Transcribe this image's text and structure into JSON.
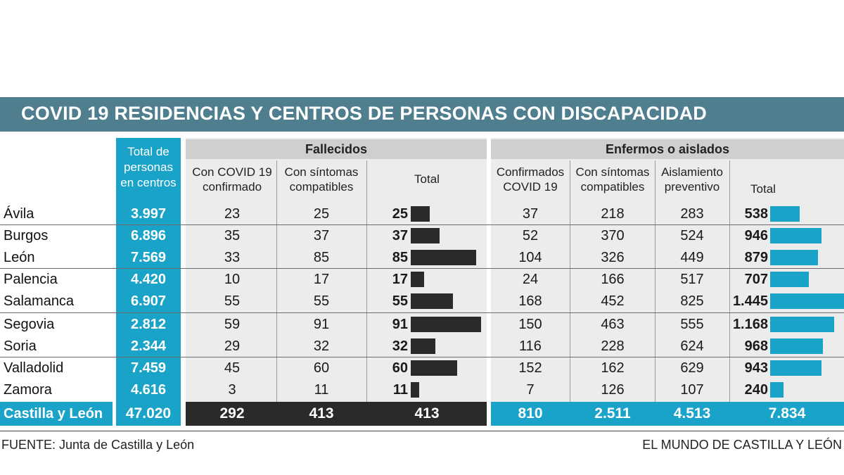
{
  "title": "COVID 19 RESIDENCIAS Y CENTROS DE PERSONAS CON DISCAPACIDAD",
  "groups": {
    "fallecidos": "Fallecidos",
    "enfermos": "Enfermos o aislados"
  },
  "headers": {
    "total_personas": "Total de personas en centros",
    "total_personas_lines": [
      "Total de",
      "personas",
      "en centros"
    ],
    "f_covid": [
      "Con COVID 19",
      "confirmado"
    ],
    "f_sintomas": [
      "Con síntomas",
      "compatibles"
    ],
    "f_total": "Total",
    "e_confirmados": [
      "Confirmados",
      "COVID 19"
    ],
    "e_sintomas": [
      "Con síntomas",
      "compatibles"
    ],
    "e_aislamiento": [
      "Aislamiento",
      "preventivo"
    ],
    "e_total": "Total"
  },
  "colors": {
    "title_bar": "#4f7f8f",
    "accent_blue": "#1aa3c8",
    "dark": "#2a2a2a",
    "grey_panel": "#ececec",
    "header_grey": "#cfcfcf"
  },
  "chart_data": {
    "type": "table",
    "title": "COVID 19 RESIDENCIAS Y CENTROS DE PERSONAS CON DISCAPACIDAD",
    "rows": [
      {
        "provincia": "Ávila",
        "total_personas": "3.997",
        "f_covid": "23",
        "f_sintomas": "25",
        "f_total": "25",
        "f_total_value": 25,
        "e_confirmados": "37",
        "e_sintomas": "218",
        "e_aislamiento": "283",
        "e_total": "538",
        "e_total_value": 538
      },
      {
        "provincia": "Burgos",
        "total_personas": "6.896",
        "f_covid": "35",
        "f_sintomas": "37",
        "f_total": "37",
        "f_total_value": 37,
        "e_confirmados": "52",
        "e_sintomas": "370",
        "e_aislamiento": "524",
        "e_total": "946",
        "e_total_value": 946
      },
      {
        "provincia": "León",
        "total_personas": "7.569",
        "f_covid": "33",
        "f_sintomas": "85",
        "f_total": "85",
        "f_total_value": 85,
        "e_confirmados": "104",
        "e_sintomas": "326",
        "e_aislamiento": "449",
        "e_total": "879",
        "e_total_value": 879
      },
      {
        "provincia": "Palencia",
        "total_personas": "4.420",
        "f_covid": "10",
        "f_sintomas": "17",
        "f_total": "17",
        "f_total_value": 17,
        "e_confirmados": "24",
        "e_sintomas": "166",
        "e_aislamiento": "517",
        "e_total": "707",
        "e_total_value": 707
      },
      {
        "provincia": "Salamanca",
        "total_personas": "6.907",
        "f_covid": "55",
        "f_sintomas": "55",
        "f_total": "55",
        "f_total_value": 55,
        "e_confirmados": "168",
        "e_sintomas": "452",
        "e_aislamiento": "825",
        "e_total": "1.445",
        "e_total_value": 1445
      },
      {
        "provincia": "Segovia",
        "total_personas": "2.812",
        "f_covid": "59",
        "f_sintomas": "91",
        "f_total": "91",
        "f_total_value": 91,
        "e_confirmados": "150",
        "e_sintomas": "463",
        "e_aislamiento": "555",
        "e_total": "1.168",
        "e_total_value": 1168
      },
      {
        "provincia": "Soria",
        "total_personas": "2.344",
        "f_covid": "29",
        "f_sintomas": "32",
        "f_total": "32",
        "f_total_value": 32,
        "e_confirmados": "116",
        "e_sintomas": "228",
        "e_aislamiento": "624",
        "e_total": "968",
        "e_total_value": 968
      },
      {
        "provincia": "Valladolid",
        "total_personas": "7.459",
        "f_covid": "45",
        "f_sintomas": "60",
        "f_total": "60",
        "f_total_value": 60,
        "e_confirmados": "152",
        "e_sintomas": "162",
        "e_aislamiento": "629",
        "e_total": "943",
        "e_total_value": 943
      },
      {
        "provincia": "Zamora",
        "total_personas": "4.616",
        "f_covid": "3",
        "f_sintomas": "11",
        "f_total": "11",
        "f_total_value": 11,
        "e_confirmados": "7",
        "e_sintomas": "126",
        "e_aislamiento": "107",
        "e_total": "240",
        "e_total_value": 240
      }
    ],
    "total": {
      "provincia": "Castilla y León",
      "total_personas": "47.020",
      "f_covid": "292",
      "f_sintomas": "413",
      "f_total": "413",
      "e_confirmados": "810",
      "e_sintomas": "2.511",
      "e_aislamiento": "4.513",
      "e_total": "7.834"
    },
    "bar_scale": {
      "f_total_max": 91,
      "e_total_max": 1445
    }
  },
  "footer": {
    "source": "FUENTE:  Junta de Castilla y León",
    "credit": "EL MUNDO DE CASTILLA Y LEÓN"
  }
}
